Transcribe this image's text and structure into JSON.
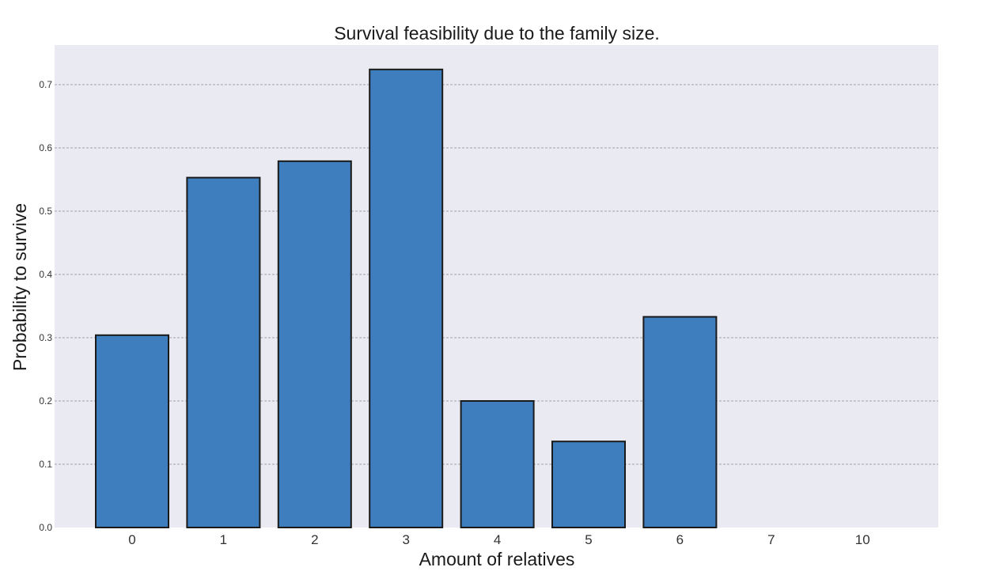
{
  "chart_data": {
    "type": "bar",
    "title": "Survival feasibility due to the family size.",
    "xlabel": "Amount of relatives",
    "ylabel": "Probability to survive",
    "categories": [
      "0",
      "1",
      "2",
      "3",
      "4",
      "5",
      "6",
      "7",
      "10"
    ],
    "values": [
      0.304,
      0.553,
      0.579,
      0.724,
      0.2,
      0.136,
      0.333,
      0.0,
      0.0
    ],
    "ylim": [
      0,
      0.7625
    ],
    "yticks": [
      "0.0",
      "0.1",
      "0.2",
      "0.3",
      "0.4",
      "0.5",
      "0.6",
      "0.7"
    ],
    "grid": "horizontal dashed",
    "colors": {
      "plot_background": "#eaeaf2",
      "bar_fill": "#3e7ebf",
      "bar_edge": "#1a1a1a",
      "grid": "#8c8c8c"
    }
  }
}
